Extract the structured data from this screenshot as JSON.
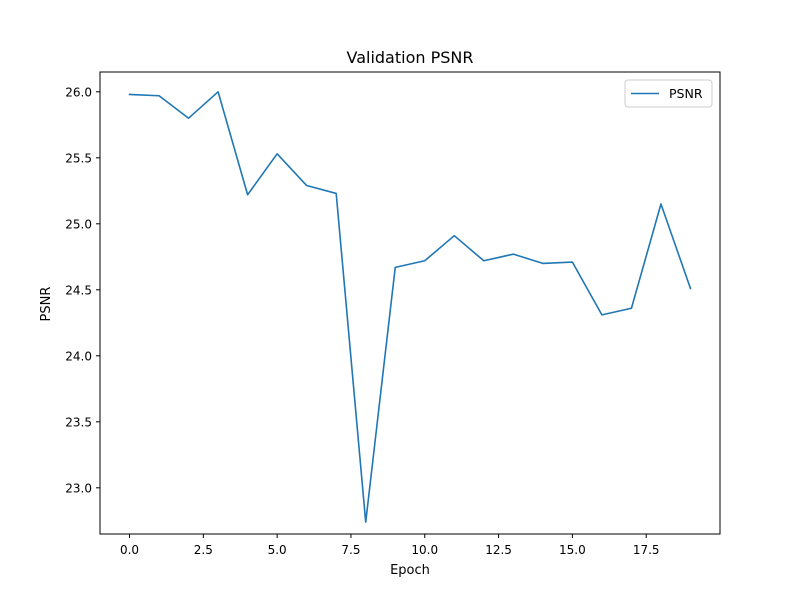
{
  "chart_data": {
    "type": "line",
    "title": "Validation PSNR",
    "xlabel": "Epoch",
    "ylabel": "PSNR",
    "xlim": [
      -1,
      20
    ],
    "ylim": [
      22.65,
      26.15
    ],
    "xticks": [
      0.0,
      2.5,
      5.0,
      7.5,
      10.0,
      12.5,
      15.0,
      17.5
    ],
    "xtick_labels": [
      "0.0",
      "2.5",
      "5.0",
      "7.5",
      "10.0",
      "12.5",
      "15.0",
      "17.5"
    ],
    "yticks": [
      23.0,
      23.5,
      24.0,
      24.5,
      25.0,
      25.5,
      26.0
    ],
    "ytick_labels": [
      "23.0",
      "23.5",
      "24.0",
      "24.5",
      "25.0",
      "25.5",
      "26.0"
    ],
    "grid": false,
    "legend_position": "top-right",
    "series": [
      {
        "name": "PSNR",
        "color": "#1f77b4",
        "x": [
          0,
          1,
          2,
          3,
          4,
          5,
          6,
          7,
          8,
          9,
          10,
          11,
          12,
          13,
          14,
          15,
          16,
          17,
          18,
          19
        ],
        "y": [
          25.98,
          25.97,
          25.8,
          26.0,
          25.22,
          25.53,
          25.29,
          25.23,
          22.74,
          24.67,
          24.72,
          24.91,
          24.72,
          24.77,
          24.7,
          24.71,
          24.31,
          24.36,
          25.15,
          24.51
        ]
      }
    ]
  }
}
